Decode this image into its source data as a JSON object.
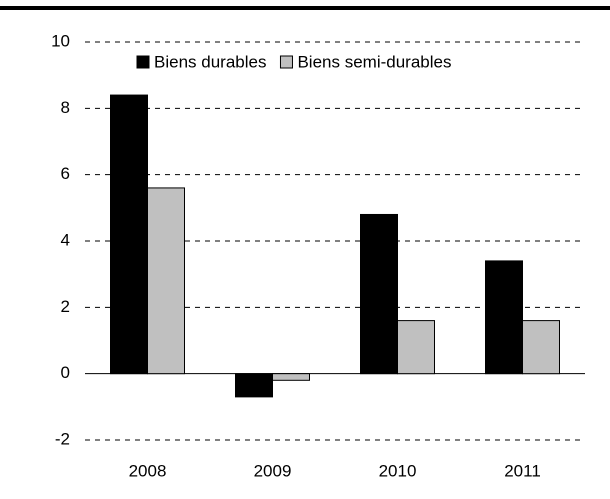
{
  "chart_data": {
    "type": "bar",
    "categories": [
      "2008",
      "2009",
      "2010",
      "2011"
    ],
    "series": [
      {
        "name": "Biens durables",
        "color": "#000000",
        "values": [
          8.4,
          -0.7,
          4.8,
          3.4
        ]
      },
      {
        "name": "Biens semi-durables",
        "color": "#c0c0c0",
        "values": [
          5.6,
          -0.2,
          1.6,
          1.6
        ]
      }
    ],
    "ylim": [
      -2,
      10
    ],
    "yticks": [
      -2,
      0,
      2,
      4,
      6,
      8,
      10
    ],
    "grid": true,
    "legend": "top"
  }
}
